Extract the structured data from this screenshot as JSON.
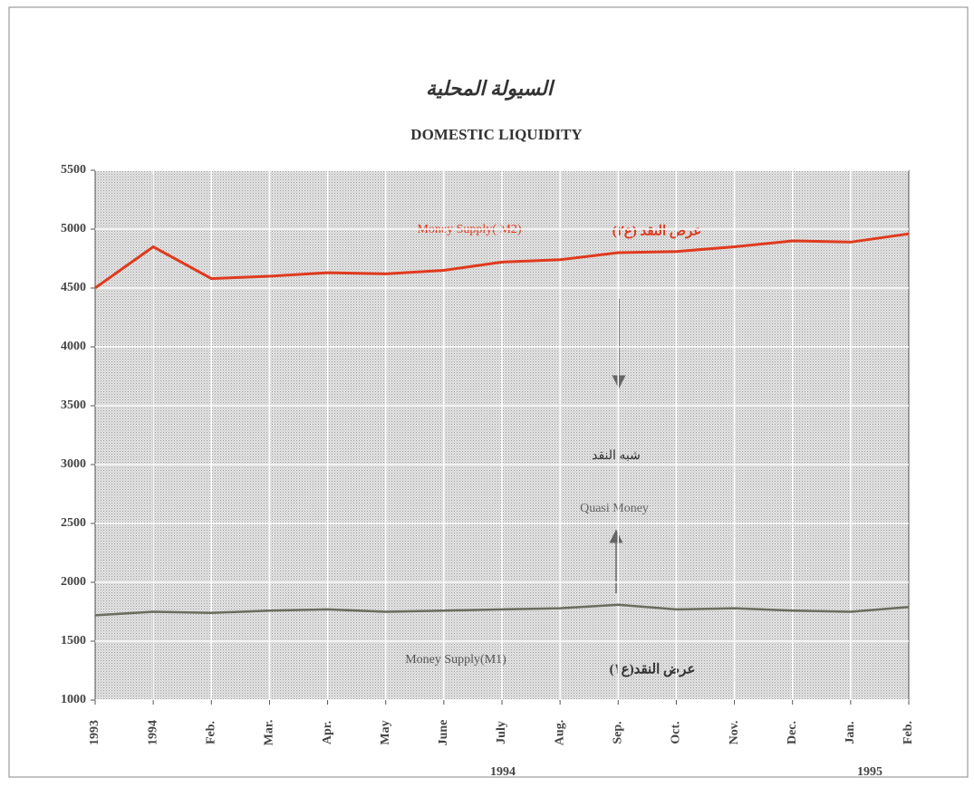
{
  "chart_data": {
    "type": "line",
    "title": "DOMESTIC LIQUIDITY",
    "title_arabic": "السيولة المحلية",
    "categories": [
      "1993",
      "1994",
      "Feb.",
      "Mar.",
      "Apr.",
      "May",
      "June",
      "July",
      "Aug.",
      "Sep.",
      "Oct.",
      "Nov.",
      "Dec.",
      "Jan.",
      "Feb."
    ],
    "x_groups": [
      "1994",
      "1995"
    ],
    "series": [
      {
        "name": "Money Supply( M2)",
        "name_arabic": "عرض النقد (ع٢)",
        "color": "#e03a1e",
        "values": [
          4500,
          4850,
          4580,
          4600,
          4630,
          4620,
          4650,
          4720,
          4740,
          4800,
          4810,
          4850,
          4900,
          4890,
          4960
        ]
      },
      {
        "name": "Money Supply(M1)",
        "name_arabic": "عرض النقد(ع١)",
        "color": "#6b6b5e",
        "values": [
          1720,
          1750,
          1740,
          1760,
          1770,
          1750,
          1760,
          1770,
          1780,
          1810,
          1770,
          1780,
          1760,
          1750,
          1790
        ]
      }
    ],
    "annotations": [
      "شبه النقد",
      "Quasi Money"
    ],
    "ylim": [
      1000,
      5500
    ],
    "yticks": [
      1000,
      1500,
      2000,
      2500,
      3000,
      3500,
      4000,
      4500,
      5000,
      5500
    ],
    "grid": true
  }
}
